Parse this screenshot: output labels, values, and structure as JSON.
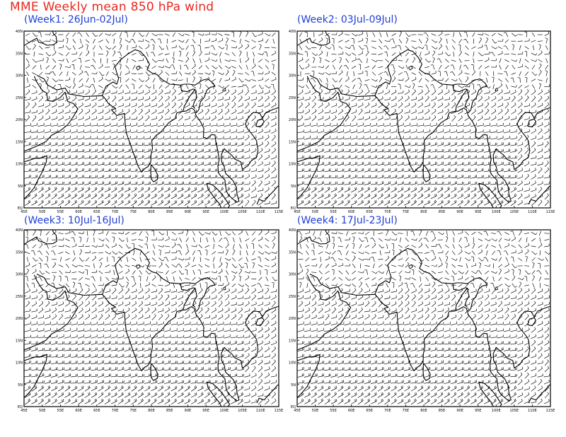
{
  "title": "MME Weekly mean 850 hPa wind",
  "axes": {
    "x_ticks": [
      "45E",
      "50E",
      "55E",
      "60E",
      "65E",
      "70E",
      "75E",
      "80E",
      "85E",
      "90E",
      "95E",
      "100E",
      "105E",
      "110E",
      "115E"
    ],
    "y_ticks": [
      "40N",
      "35N",
      "30N",
      "25N",
      "20N",
      "15N",
      "10N",
      "5N",
      "EQ"
    ],
    "lon_range": [
      45,
      115
    ],
    "lat_range": [
      0,
      40
    ]
  },
  "panels": [
    {
      "id": "week1",
      "label": "(Week1: 26Jun-02Jul)"
    },
    {
      "id": "week2",
      "label": "(Week2: 03Jul-09Jul)"
    },
    {
      "id": "week3",
      "label": "(Week3: 10Jul-16Jul)"
    },
    {
      "id": "week4",
      "label": "(Week4: 17Jul-23Jul)"
    }
  ],
  "colors": {
    "title": "#e8281e",
    "panel_label": "#1f3fd6",
    "lines": "#000000"
  }
}
